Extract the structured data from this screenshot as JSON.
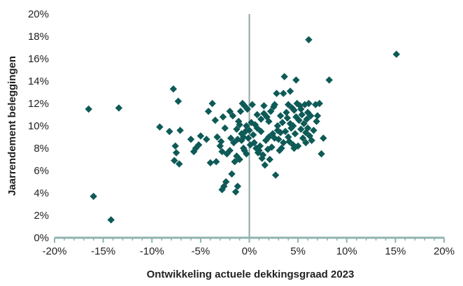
{
  "chart_data": {
    "type": "scatter",
    "xlabel": "Ontwikkeling actuele dekkingsgraad 2023",
    "ylabel": "Jaarrendement beleggingen",
    "xlim": [
      -20,
      20
    ],
    "ylim": [
      0,
      20
    ],
    "x_ticks": [
      -20,
      -15,
      -10,
      -5,
      0,
      5,
      10,
      15,
      20
    ],
    "y_ticks": [
      0,
      2,
      4,
      6,
      8,
      10,
      12,
      14,
      16,
      18,
      20
    ],
    "x_tick_labels": [
      "-20%",
      "-15%",
      "-10%",
      "-5%",
      "0%",
      "5%",
      "10%",
      "15%",
      "20%"
    ],
    "y_tick_labels": [
      "0%",
      "2%",
      "4%",
      "6%",
      "8%",
      "10%",
      "12%",
      "14%",
      "16%",
      "18%",
      "20%"
    ],
    "grid": false,
    "legend": "none",
    "marker": "diamond",
    "colors": {
      "marker": "#0e5a57",
      "axis": "#8fb3b0",
      "zero_line": "#8fa5a3",
      "text": "#222222"
    },
    "series": [
      {
        "points": [
          [
            -16.5,
            11.5
          ],
          [
            -16.0,
            3.7
          ],
          [
            -14.2,
            1.6
          ],
          [
            -13.4,
            11.6
          ],
          [
            -9.2,
            9.9
          ],
          [
            -8.2,
            9.5
          ],
          [
            -7.8,
            13.3
          ],
          [
            -7.3,
            12.2
          ],
          [
            -7.6,
            8.2
          ],
          [
            -7.5,
            7.6
          ],
          [
            -7.7,
            6.9
          ],
          [
            -7.2,
            6.6
          ],
          [
            -7.1,
            9.6
          ],
          [
            -6.0,
            8.8
          ],
          [
            -5.7,
            7.7
          ],
          [
            -5.5,
            8.0
          ],
          [
            -5.2,
            8.3
          ],
          [
            -5.0,
            9.1
          ],
          [
            -4.4,
            8.8
          ],
          [
            -4.2,
            11.3
          ],
          [
            -4.0,
            6.7
          ],
          [
            -3.8,
            12.0
          ],
          [
            -3.4,
            6.8
          ],
          [
            -3.3,
            9.0
          ],
          [
            -3.5,
            10.5
          ],
          [
            -3.0,
            8.2
          ],
          [
            -2.9,
            8.6
          ],
          [
            -2.8,
            7.7
          ],
          [
            -2.7,
            10.8
          ],
          [
            -2.6,
            4.6
          ],
          [
            -2.8,
            4.3
          ],
          [
            -2.4,
            5.0
          ],
          [
            -2.5,
            9.8
          ],
          [
            -2.3,
            7.5
          ],
          [
            -2.0,
            11.3
          ],
          [
            -2.0,
            7.8
          ],
          [
            -1.9,
            8.9
          ],
          [
            -1.8,
            5.7
          ],
          [
            -1.7,
            10.9
          ],
          [
            -1.6,
            8.5
          ],
          [
            -1.5,
            6.8
          ],
          [
            -1.4,
            4.1
          ],
          [
            -1.2,
            4.6
          ],
          [
            -1.3,
            9.7
          ],
          [
            -1.2,
            8.8
          ],
          [
            -1.1,
            10.4
          ],
          [
            -1.0,
            7.0
          ],
          [
            -0.9,
            11.3
          ],
          [
            -0.8,
            8.7
          ],
          [
            -0.7,
            12.0
          ],
          [
            -0.6,
            9.0
          ],
          [
            -0.5,
            7.8
          ],
          [
            -0.5,
            11.8
          ],
          [
            -0.4,
            9.5
          ],
          [
            -0.3,
            10.0
          ],
          [
            -0.3,
            7.5
          ],
          [
            -0.2,
            11.5
          ],
          [
            -0.6,
            8.0
          ],
          [
            -0.8,
            9.3
          ],
          [
            -0.1,
            8.9
          ],
          [
            0.0,
            9.6
          ],
          [
            -1.0,
            10.1
          ],
          [
            -1.3,
            7.3
          ],
          [
            0.2,
            10.3
          ],
          [
            0.3,
            11.9
          ],
          [
            0.4,
            9.2
          ],
          [
            0.5,
            8.5
          ],
          [
            0.6,
            10.1
          ],
          [
            0.7,
            8.0
          ],
          [
            0.8,
            9.8
          ],
          [
            0.9,
            7.6
          ],
          [
            1.0,
            7.8
          ],
          [
            1.1,
            8.2
          ],
          [
            1.2,
            9.5
          ],
          [
            1.3,
            7.1
          ],
          [
            1.4,
            7.4
          ],
          [
            1.5,
            11.8
          ],
          [
            1.6,
            6.5
          ],
          [
            1.7,
            8.7
          ],
          [
            1.8,
            10.8
          ],
          [
            1.9,
            7.9
          ],
          [
            2.0,
            10.4
          ],
          [
            2.1,
            7.0
          ],
          [
            2.2,
            11.3
          ],
          [
            2.3,
            8.1
          ],
          [
            2.4,
            9.3
          ],
          [
            2.5,
            11.7
          ],
          [
            2.6,
            11.9
          ],
          [
            2.7,
            5.6
          ],
          [
            2.8,
            12.9
          ],
          [
            2.9,
            9.6
          ],
          [
            3.0,
            8.8
          ],
          [
            3.1,
            7.8
          ],
          [
            3.2,
            10.9
          ],
          [
            3.3,
            8.0
          ],
          [
            3.4,
            10.3
          ],
          [
            3.5,
            12.9
          ],
          [
            3.6,
            14.4
          ],
          [
            3.7,
            9.5
          ],
          [
            3.8,
            11.2
          ],
          [
            3.9,
            10.7
          ],
          [
            4.0,
            9.0
          ],
          [
            4.1,
            8.6
          ],
          [
            4.2,
            10.2
          ],
          [
            4.3,
            9.8
          ],
          [
            4.4,
            11.6
          ],
          [
            4.5,
            8.3
          ],
          [
            4.6,
            11.4
          ],
          [
            4.7,
            9.3
          ],
          [
            4.8,
            10.8
          ],
          [
            4.9,
            12.0
          ],
          [
            5.0,
            8.2
          ],
          [
            5.1,
            10.5
          ],
          [
            5.2,
            11.8
          ],
          [
            5.3,
            9.7
          ],
          [
            5.4,
            11.0
          ],
          [
            5.5,
            8.9
          ],
          [
            5.6,
            10.2
          ],
          [
            5.7,
            11.9
          ],
          [
            5.8,
            9.4
          ],
          [
            5.9,
            10.6
          ],
          [
            6.0,
            11.2
          ],
          [
            6.1,
            12.0
          ],
          [
            6.2,
            9.1
          ],
          [
            6.3,
            10.9
          ],
          [
            6.4,
            8.7
          ],
          [
            4.2,
            13.1
          ],
          [
            4.8,
            14.1
          ],
          [
            3.5,
            8.5
          ],
          [
            2.9,
            10.0
          ],
          [
            4.0,
            11.9
          ],
          [
            4.6,
            8.0
          ],
          [
            5.3,
            11.5
          ],
          [
            6.0,
            9.8
          ],
          [
            3.2,
            9.4
          ],
          [
            6.8,
            11.9
          ],
          [
            6.9,
            10.4
          ],
          [
            7.0,
            10.9
          ],
          [
            7.2,
            12.0
          ],
          [
            7.4,
            7.5
          ],
          [
            7.6,
            8.9
          ],
          [
            8.2,
            14.1
          ],
          [
            6.1,
            17.7
          ],
          [
            15.1,
            16.4
          ],
          [
            6.6,
            9.6
          ],
          [
            1.5,
            11.1
          ],
          [
            2.0,
            9.0
          ],
          [
            0.8,
            11.0
          ],
          [
            0.1,
            8.3
          ],
          [
            1.2,
            10.6
          ],
          [
            2.6,
            8.9
          ],
          [
            4.5,
            10.0
          ],
          [
            5.8,
            8.5
          ]
        ]
      }
    ]
  }
}
